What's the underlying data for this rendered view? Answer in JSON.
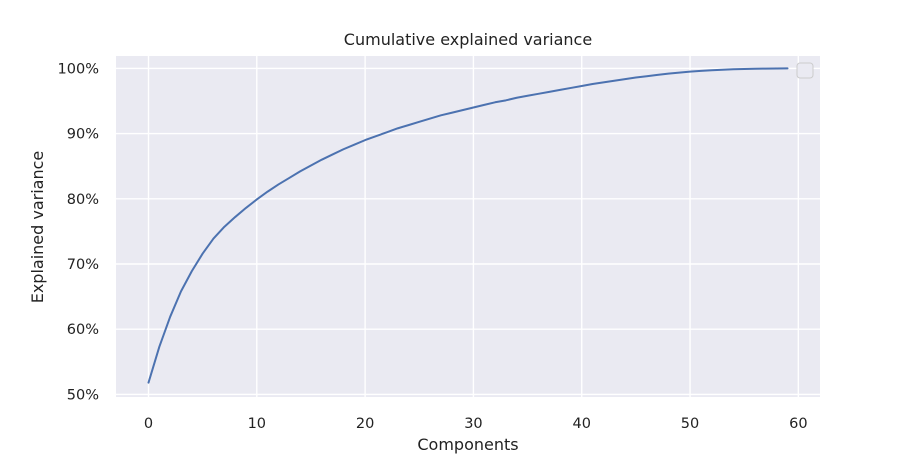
{
  "chart_data": {
    "type": "line",
    "title": "Cumulative explained variance",
    "xlabel": "Components",
    "ylabel": "Explained variance",
    "xlim": [
      -3,
      62
    ],
    "ylim": [
      49.6,
      101.9
    ],
    "x_ticks": [
      0,
      10,
      20,
      30,
      40,
      50,
      60
    ],
    "x_tick_labels": [
      "0",
      "10",
      "20",
      "30",
      "40",
      "50",
      "60"
    ],
    "y_ticks": [
      50,
      60,
      70,
      80,
      90,
      100
    ],
    "y_tick_labels": [
      "50%",
      "60%",
      "70%",
      "80%",
      "90%",
      "100%"
    ],
    "grid": true,
    "legend": {
      "placement": "top-right",
      "entries": []
    },
    "colors": {
      "line": "#4c72b0",
      "plot_bg": "#eaeaf2",
      "grid": "#ffffff"
    },
    "series": [
      {
        "x": [
          0,
          1,
          2,
          3,
          4,
          5,
          6,
          7,
          8,
          9,
          10,
          11,
          12,
          13,
          14,
          15,
          16,
          17,
          18,
          19,
          20,
          21,
          22,
          23,
          24,
          25,
          26,
          27,
          28,
          29,
          30,
          31,
          32,
          33,
          34,
          35,
          36,
          37,
          38,
          39,
          40,
          41,
          42,
          43,
          44,
          45,
          46,
          47,
          48,
          49,
          50,
          51,
          52,
          53,
          54,
          55,
          56,
          57,
          58,
          59
        ],
        "values": [
          51.8,
          57.3,
          61.9,
          65.8,
          68.9,
          71.6,
          73.9,
          75.7,
          77.2,
          78.6,
          79.9,
          81.1,
          82.2,
          83.2,
          84.2,
          85.1,
          86.0,
          86.8,
          87.6,
          88.3,
          89.0,
          89.6,
          90.2,
          90.8,
          91.3,
          91.8,
          92.3,
          92.8,
          93.2,
          93.6,
          94.0,
          94.4,
          94.8,
          95.1,
          95.5,
          95.8,
          96.1,
          96.4,
          96.7,
          97.0,
          97.3,
          97.6,
          97.85,
          98.1,
          98.35,
          98.6,
          98.8,
          99.0,
          99.2,
          99.35,
          99.5,
          99.62,
          99.72,
          99.8,
          99.86,
          99.91,
          99.94,
          99.97,
          99.99,
          100.0
        ]
      }
    ]
  }
}
